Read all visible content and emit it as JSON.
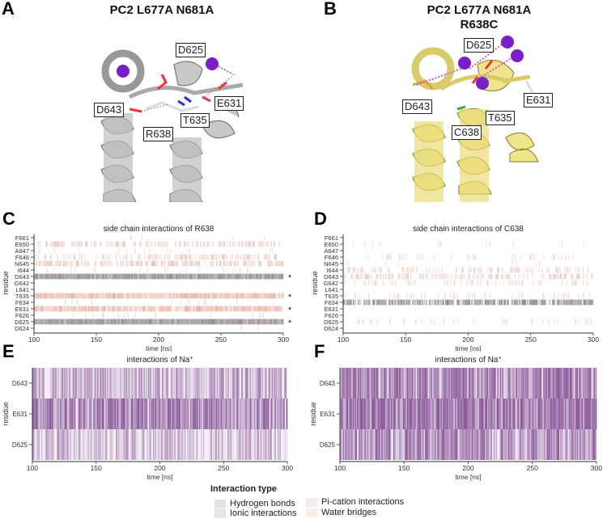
{
  "panels": {
    "A": {
      "letter": "A",
      "title": "PC2 L677A N681A",
      "labels": [
        "D625",
        "D643",
        "R638",
        "T635",
        "E631"
      ]
    },
    "B": {
      "letter": "B",
      "title_line1": "PC2 L677A N681A",
      "title_line2": "R638C",
      "labels": [
        "D625",
        "D643",
        "C638",
        "T635",
        "E631"
      ]
    },
    "C": {
      "letter": "C"
    },
    "D": {
      "letter": "D"
    },
    "E": {
      "letter": "E"
    },
    "F": {
      "letter": "F"
    }
  },
  "colors": {
    "hydrogen_bonds": "#b4b4b4",
    "ionic": "#d2cce6",
    "pi_cation": "#eedbe8",
    "water_bridges": "#f9ddd6",
    "na_interaction": "#8b5a9b",
    "wildtype_cartoon": "#c8c8c8",
    "mutant_cartoon": "#efe58a",
    "sodium": "#7a1fc8"
  },
  "legend": {
    "title": "Interaction type",
    "items": [
      "Hydrogen bonds",
      "Ionic interactions",
      "Pi-cation interactions",
      "Water bridges"
    ]
  },
  "chart_data": [
    {
      "type": "heatmap",
      "title": "side chain interactions of R638",
      "xlabel": "time [ns]",
      "ylabel": "residue",
      "xlim": [
        100,
        300
      ],
      "xticks": [
        "100",
        "150",
        "200",
        "250",
        "300"
      ],
      "residues": [
        "F661",
        "E650",
        "A647",
        "F646",
        "N645",
        "I644",
        "D643",
        "G642",
        "L641",
        "T635",
        "F634",
        "E631",
        "F626",
        "D625",
        "D624"
      ],
      "occupancy": [
        0.02,
        0.45,
        0.03,
        0.35,
        0.5,
        0.05,
        1.0,
        0.0,
        0.0,
        0.95,
        0.03,
        0.9,
        0.05,
        1.0,
        0.02
      ],
      "dominant": [
        "water",
        "water",
        "water",
        "water",
        "water",
        "water",
        "hbond",
        "water",
        "water",
        "water",
        "water",
        "water",
        "water",
        "hbond",
        "water"
      ],
      "significant_marker": "*",
      "significant_residues": [
        "D643",
        "T635",
        "E631",
        "D625"
      ]
    },
    {
      "type": "heatmap",
      "title": "side chain interactions of C638",
      "xlabel": "time [ns]",
      "ylabel": "residue",
      "xlim": [
        100,
        300
      ],
      "xticks": [
        "100",
        "150",
        "200",
        "250",
        "300"
      ],
      "residues": [
        "F661",
        "E650",
        "A647",
        "F646",
        "N645",
        "I644",
        "D643",
        "G642",
        "L641",
        "T635",
        "F634",
        "E631",
        "F626",
        "D625",
        "D624"
      ],
      "occupancy": [
        0.0,
        0.05,
        0.0,
        0.12,
        0.02,
        0.3,
        0.4,
        0.2,
        0.0,
        0.15,
        0.7,
        0.0,
        0.0,
        0.12,
        0.0
      ],
      "dominant": [
        "water",
        "water",
        "water",
        "water",
        "water",
        "water",
        "water",
        "water",
        "water",
        "water",
        "hbond",
        "water",
        "water",
        "water",
        "water"
      ]
    },
    {
      "type": "heatmap",
      "title": "interactions of Na",
      "title_sup": "+",
      "xlabel": "time [ns]",
      "ylabel": "residue",
      "xlim": [
        100,
        300
      ],
      "xticks": [
        "100",
        "150",
        "200",
        "250",
        "300"
      ],
      "residues": [
        "D643",
        "E631",
        "D625"
      ],
      "occupancy": [
        0.55,
        0.75,
        0.45
      ]
    },
    {
      "type": "heatmap",
      "title": "interactions of Na",
      "title_sup": "+",
      "xlabel": "time [ns]",
      "ylabel": "residue",
      "xlim": [
        100,
        300
      ],
      "xticks": [
        "100",
        "150",
        "200",
        "250",
        "300"
      ],
      "residues": [
        "D643",
        "E631",
        "D625"
      ],
      "occupancy": [
        0.75,
        0.85,
        0.7
      ]
    }
  ]
}
